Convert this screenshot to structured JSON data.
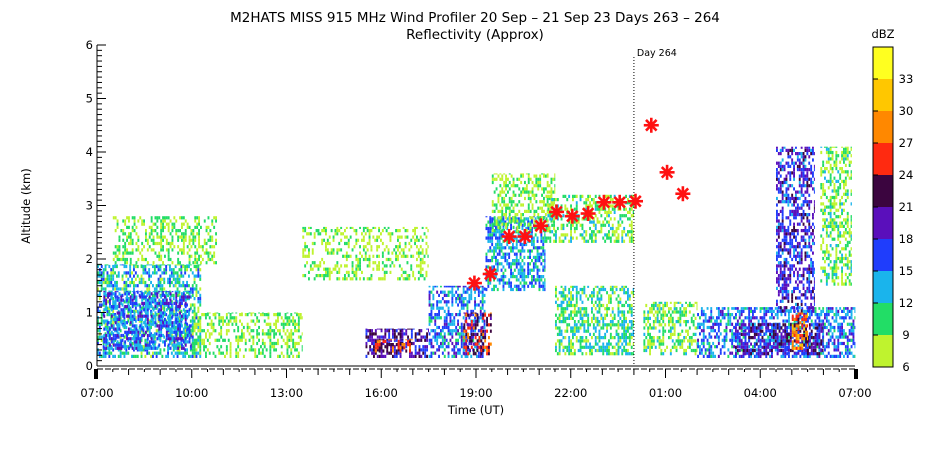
{
  "chart_data": {
    "type": "heatmap",
    "title": "M2HATS MISS 915 MHz Wind Profiler  20 Sep – 21 Sep 23 Days 263 – 264",
    "subtitle": "Reflectivity (Approx)",
    "xlabel": "Time (UT)",
    "ylabel": "Altitude (km)",
    "x_tick_labels": [
      "07:00",
      "10:00",
      "13:00",
      "16:00",
      "19:00",
      "22:00",
      "01:00",
      "04:00",
      "07:00"
    ],
    "x_ticks_hours": [
      0,
      3,
      6,
      9,
      12,
      15,
      18,
      21,
      24
    ],
    "xlim_hours": [
      0,
      24
    ],
    "y_tick_labels": [
      "0",
      "1",
      "2",
      "3",
      "4",
      "5",
      "6"
    ],
    "ylim": [
      0,
      6
    ],
    "day_marker": {
      "label": "Day 264",
      "hour_since_start": 17
    },
    "colorbar": {
      "label": "dBZ",
      "tick_labels": [
        "6",
        "9",
        "12",
        "15",
        "18",
        "21",
        "24",
        "27",
        "30",
        "33"
      ],
      "bins": [
        {
          "from": 6,
          "to": 9,
          "color": "#bff32e"
        },
        {
          "from": 9,
          "to": 12,
          "color": "#22dd66"
        },
        {
          "from": 12,
          "to": 15,
          "color": "#1ab4ec"
        },
        {
          "from": 15,
          "to": 18,
          "color": "#1f3dfc"
        },
        {
          "from": 18,
          "to": 21,
          "color": "#5a0fbb"
        },
        {
          "from": 21,
          "to": 24,
          "color": "#3b053f"
        },
        {
          "from": 24,
          "to": 27,
          "color": "#ff2a10"
        },
        {
          "from": 27,
          "to": 30,
          "color": "#ff8800"
        },
        {
          "from": 30,
          "to": 33,
          "color": "#ffc700"
        },
        {
          "from": 33,
          "to": 36,
          "color": "#ffff20"
        }
      ]
    },
    "boundary_layer_height_markers": {
      "color": "#ff1111",
      "points": [
        {
          "t": 11.95,
          "alt": 1.55
        },
        {
          "t": 12.45,
          "alt": 1.72
        },
        {
          "t": 13.05,
          "alt": 2.42
        },
        {
          "t": 13.55,
          "alt": 2.42
        },
        {
          "t": 14.05,
          "alt": 2.62
        },
        {
          "t": 14.55,
          "alt": 2.88
        },
        {
          "t": 15.05,
          "alt": 2.8
        },
        {
          "t": 15.55,
          "alt": 2.85
        },
        {
          "t": 16.05,
          "alt": 3.06
        },
        {
          "t": 16.55,
          "alt": 3.06
        },
        {
          "t": 17.05,
          "alt": 3.08
        },
        {
          "t": 17.55,
          "alt": 4.5
        },
        {
          "t": 18.05,
          "alt": 3.62
        },
        {
          "t": 18.55,
          "alt": 3.22
        }
      ]
    },
    "reflectivity_regions": [
      {
        "t0": 0.0,
        "t1": 3.3,
        "alt0": 0.15,
        "alt1": 1.9,
        "dbz": 12
      },
      {
        "t0": 0.2,
        "t1": 3.0,
        "alt0": 0.3,
        "alt1": 1.4,
        "dbz": 16
      },
      {
        "t0": 0.5,
        "t1": 3.8,
        "alt0": 1.9,
        "alt1": 2.8,
        "dbz": 8
      },
      {
        "t0": 3.0,
        "t1": 6.5,
        "alt0": 0.15,
        "alt1": 1.0,
        "dbz": 8
      },
      {
        "t0": 6.5,
        "t1": 10.5,
        "alt0": 1.6,
        "alt1": 2.6,
        "dbz": 7
      },
      {
        "t0": 8.5,
        "t1": 10.5,
        "alt0": 0.15,
        "alt1": 0.7,
        "dbz": 20
      },
      {
        "t0": 8.8,
        "t1": 10.0,
        "alt0": 0.25,
        "alt1": 0.5,
        "dbz": 25
      },
      {
        "t0": 10.5,
        "t1": 12.3,
        "alt0": 0.15,
        "alt1": 1.5,
        "dbz": 15
      },
      {
        "t0": 11.6,
        "t1": 12.5,
        "alt0": 0.2,
        "alt1": 1.0,
        "dbz": 24
      },
      {
        "t0": 12.3,
        "t1": 14.2,
        "alt0": 1.4,
        "alt1": 2.8,
        "dbz": 14
      },
      {
        "t0": 12.5,
        "t1": 14.5,
        "alt0": 2.5,
        "alt1": 3.6,
        "dbz": 8
      },
      {
        "t0": 14.2,
        "t1": 17.0,
        "alt0": 2.3,
        "alt1": 3.2,
        "dbz": 9
      },
      {
        "t0": 14.5,
        "t1": 17.0,
        "alt0": 0.2,
        "alt1": 1.5,
        "dbz": 11
      },
      {
        "t0": 17.3,
        "t1": 19.0,
        "alt0": 0.2,
        "alt1": 1.2,
        "dbz": 9
      },
      {
        "t0": 19.0,
        "t1": 24.0,
        "alt0": 0.15,
        "alt1": 1.1,
        "dbz": 15
      },
      {
        "t0": 20.2,
        "t1": 23.0,
        "alt0": 0.2,
        "alt1": 0.8,
        "dbz": 20
      },
      {
        "t0": 21.5,
        "t1": 22.7,
        "alt0": 1.0,
        "alt1": 4.1,
        "dbz": 18
      },
      {
        "t0": 22.0,
        "t1": 22.5,
        "alt0": 0.3,
        "alt1": 1.0,
        "dbz": 27
      },
      {
        "t0": 22.9,
        "t1": 23.9,
        "alt0": 1.5,
        "alt1": 4.1,
        "dbz": 9
      }
    ]
  }
}
